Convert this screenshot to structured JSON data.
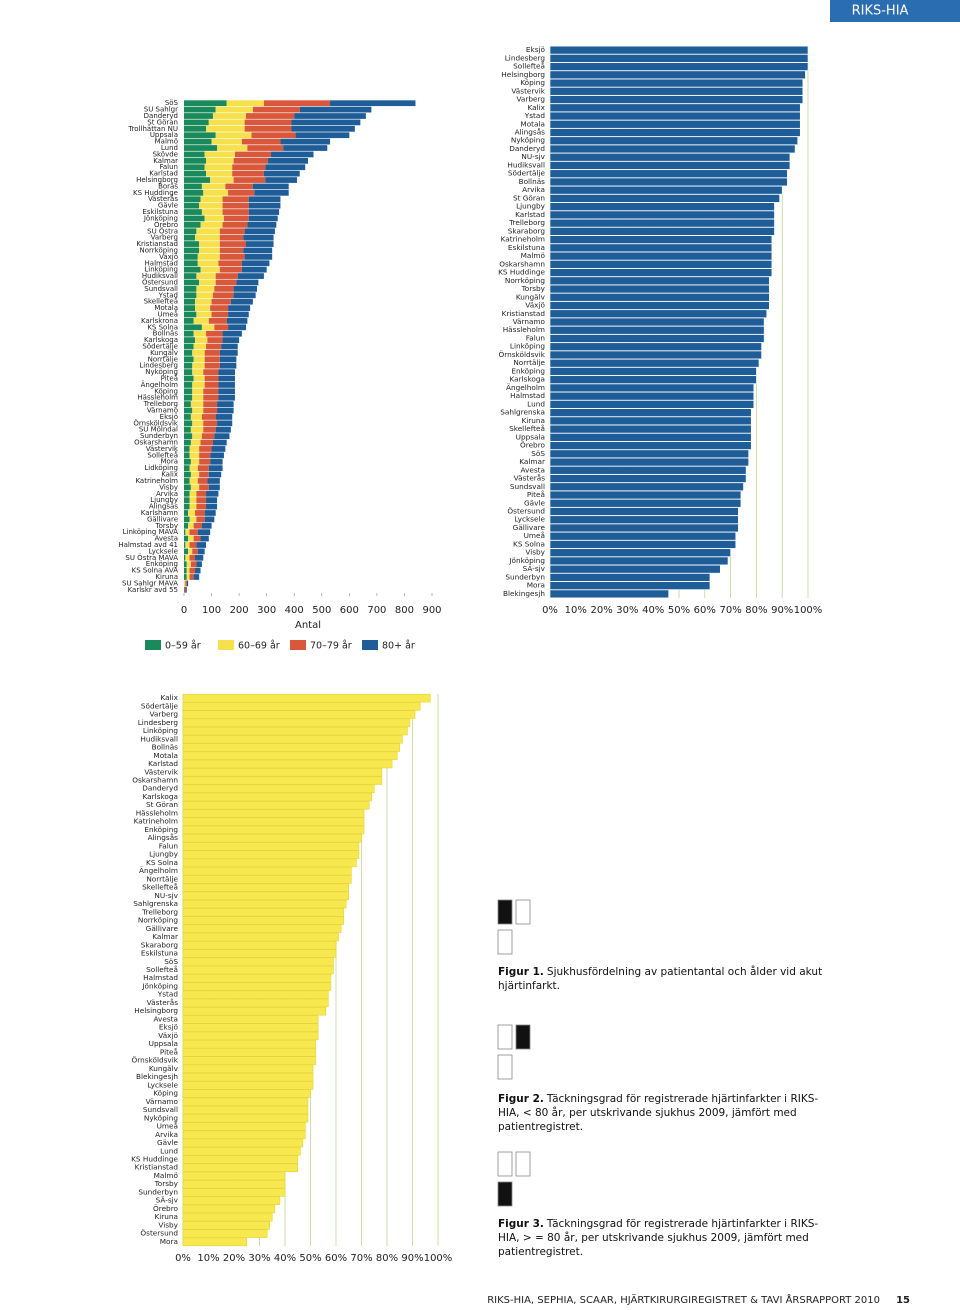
{
  "header": {
    "title": "RIKS-HIA"
  },
  "chart_data": [
    {
      "type": "stacked_bar",
      "xlabel": "Antal",
      "categories": [
        "SöS",
        "SU Sahlgr",
        "Danderyd",
        "St Göran",
        "Trollhättan NU",
        "Uppsala",
        "Malmö",
        "Lund",
        "Skövde",
        "Kalmar",
        "Falun",
        "Karlstad",
        "Helsingborg",
        "Borås",
        "KS Huddinge",
        "Västerås",
        "Gävle",
        "Eskilstuna",
        "Jönköping",
        "Örebro",
        "SU Östra",
        "Varberg",
        "Kristianstad",
        "Norrköping",
        "Växjö",
        "Halmstad",
        "Linköping",
        "Hudiksvall",
        "Östersund",
        "Sundsvall",
        "Ystad",
        "Skellefteå",
        "Motala",
        "Umeå",
        "Karlskrona",
        "KS Solna",
        "Bollnäs",
        "Karlskoga",
        "Södertälje",
        "Kungälv",
        "Norrtälje",
        "Lindesberg",
        "Nyköping",
        "Piteå",
        "Ängelholm",
        "Köping",
        "Hässleholm",
        "Trelleborg",
        "Värnamo",
        "Eksjö",
        "Örnsköldsvik",
        "SU Mölndal",
        "Sunderbyn",
        "Oskarshamn",
        "Västervik",
        "Sollefteå",
        "Mora",
        "Lidköping",
        "Kalix",
        "Katrineholm",
        "Visby",
        "Arvika",
        "Ljungby",
        "Alingsås",
        "Karlshamn",
        "Gällivare",
        "Torsby",
        "Linköping MAVA",
        "Avesta",
        "Halmstad avd 41",
        "Lycksele",
        "SU Östra MAVA",
        "Enköping",
        "KS Solna AVA",
        "Kiruna",
        "SU Sahlgr MAVA",
        "Karlskr avd 55"
      ],
      "series": [
        {
          "name": "0–59 år",
          "color": "#1a8a5a",
          "values": [
            155,
            115,
            105,
            90,
            80,
            115,
            100,
            120,
            75,
            80,
            75,
            80,
            95,
            65,
            70,
            60,
            55,
            65,
            75,
            60,
            45,
            40,
            55,
            55,
            50,
            50,
            60,
            45,
            55,
            45,
            45,
            40,
            40,
            45,
            35,
            65,
            35,
            40,
            35,
            30,
            35,
            30,
            30,
            35,
            30,
            30,
            30,
            25,
            30,
            25,
            30,
            25,
            30,
            25,
            20,
            20,
            25,
            20,
            25,
            20,
            25,
            20,
            20,
            20,
            15,
            20,
            15,
            5,
            15,
            5,
            15,
            5,
            10,
            10,
            10,
            0,
            0
          ]
        },
        {
          "name": "60–69 år",
          "color": "#f6e04b",
          "values": [
            135,
            135,
            120,
            130,
            140,
            130,
            110,
            110,
            110,
            100,
            100,
            95,
            85,
            85,
            90,
            80,
            85,
            75,
            70,
            80,
            85,
            90,
            75,
            75,
            80,
            75,
            70,
            70,
            60,
            65,
            60,
            60,
            55,
            55,
            55,
            45,
            45,
            45,
            45,
            45,
            40,
            45,
            40,
            40,
            45,
            40,
            40,
            45,
            40,
            40,
            40,
            45,
            35,
            35,
            35,
            35,
            30,
            30,
            30,
            30,
            30,
            25,
            25,
            25,
            25,
            25,
            20,
            15,
            20,
            15,
            15,
            15,
            15,
            10,
            10,
            5,
            0
          ]
        },
        {
          "name": "70–79 år",
          "color": "#d9573a",
          "values": [
            240,
            170,
            175,
            170,
            170,
            160,
            140,
            130,
            130,
            125,
            120,
            115,
            115,
            100,
            95,
            95,
            95,
            95,
            90,
            90,
            90,
            85,
            95,
            85,
            90,
            85,
            80,
            80,
            75,
            70,
            75,
            70,
            65,
            60,
            65,
            50,
            60,
            55,
            55,
            55,
            55,
            55,
            55,
            50,
            50,
            55,
            55,
            50,
            50,
            50,
            50,
            45,
            45,
            45,
            45,
            40,
            40,
            40,
            35,
            35,
            35,
            35,
            35,
            35,
            35,
            30,
            30,
            30,
            25,
            25,
            20,
            20,
            20,
            20,
            15,
            5,
            5
          ]
        },
        {
          "name": "80+ år",
          "color": "#1f5d99",
          "values": [
            310,
            260,
            260,
            250,
            230,
            195,
            180,
            160,
            155,
            145,
            145,
            130,
            115,
            130,
            125,
            115,
            115,
            110,
            105,
            105,
            110,
            110,
            100,
            105,
            100,
            100,
            90,
            95,
            80,
            85,
            80,
            80,
            80,
            75,
            75,
            65,
            70,
            60,
            60,
            65,
            60,
            60,
            60,
            60,
            60,
            60,
            60,
            60,
            60,
            60,
            55,
            55,
            55,
            50,
            50,
            50,
            45,
            50,
            45,
            45,
            40,
            45,
            40,
            40,
            40,
            35,
            35,
            45,
            30,
            35,
            25,
            30,
            20,
            20,
            20,
            5,
            5
          ]
        }
      ],
      "xlim": [
        0,
        900
      ],
      "xticks": [
        0,
        100,
        200,
        300,
        400,
        500,
        600,
        700,
        800,
        900
      ],
      "grid": false
    },
    {
      "type": "bar",
      "color": "#1f5d99",
      "categories": [
        "Eksjö",
        "Lindesberg",
        "Sollefteå",
        "Helsingborg",
        "Köping",
        "Västervik",
        "Varberg",
        "Kalix",
        "Ystad",
        "Motala",
        "Alingsås",
        "Nyköping",
        "Danderyd",
        "NU-sjv",
        "Hudiksvall",
        "Södertälje",
        "Bollnäs",
        "Arvika",
        "St Göran",
        "Ljungby",
        "Karlstad",
        "Trelleborg",
        "Skaraborg",
        "Katrineholm",
        "Eskilstuna",
        "Malmö",
        "Oskarshamn",
        "KS Huddinge",
        "Norrköping",
        "Torsby",
        "Kungälv",
        "Växjö",
        "Kristianstad",
        "Värnamo",
        "Hässleholm",
        "Falun",
        "Linköping",
        "Örnsköldsvik",
        "Norrtälje",
        "Enköping",
        "Karlskoga",
        "Ängelholm",
        "Halmstad",
        "Lund",
        "Sahlgrenska",
        "Kiruna",
        "Skellefteå",
        "Uppsala",
        "Örebro",
        "SöS",
        "Kalmar",
        "Avesta",
        "Västerås",
        "Sundsvall",
        "Piteå",
        "Gävle",
        "Östersund",
        "Lycksele",
        "Gällivare",
        "Umeå",
        "KS Solna",
        "Visby",
        "Jönköping",
        "SÄ-sjv",
        "Sunderbyn",
        "Mora",
        "Blekingesjh"
      ],
      "values": [
        100,
        100,
        100,
        99,
        98,
        98,
        98,
        97,
        97,
        97,
        97,
        96,
        95,
        93,
        93,
        92,
        92,
        90,
        89,
        87,
        87,
        87,
        87,
        86,
        86,
        86,
        86,
        86,
        85,
        85,
        85,
        85,
        84,
        83,
        83,
        83,
        82,
        82,
        81,
        80,
        80,
        79,
        79,
        79,
        78,
        78,
        78,
        78,
        78,
        77,
        77,
        76,
        76,
        75,
        74,
        74,
        73,
        73,
        73,
        72,
        72,
        70,
        69,
        66,
        62,
        62,
        46
      ],
      "xlim": [
        0,
        100
      ],
      "xticks": [
        {
          "value": 0,
          "label": "0%"
        },
        {
          "value": 10,
          "label": "10%"
        },
        {
          "value": 20,
          "label": "20%"
        },
        {
          "value": 30,
          "label": "30%"
        },
        {
          "value": 40,
          "label": "40%"
        },
        {
          "value": 50,
          "label": "50%"
        },
        {
          "value": 60,
          "label": "60%"
        },
        {
          "value": 70,
          "label": "70%"
        },
        {
          "value": 80,
          "label": "80%"
        },
        {
          "value": 90,
          "label": "90%"
        },
        {
          "value": 100,
          "label": "100%"
        }
      ],
      "grid": true
    },
    {
      "type": "bar",
      "color": "#f7e84f",
      "categories": [
        "Kalix",
        "Södertälje",
        "Varberg",
        "Lindesberg",
        "Linköping",
        "Hudiksvall",
        "Bollnäs",
        "Motala",
        "Karlstad",
        "Västervik",
        "Oskarshamn",
        "Danderyd",
        "Karlskoga",
        "St Göran",
        "Hässleholm",
        "Katrineholm",
        "Enköping",
        "Alingsås",
        "Falun",
        "Ljungby",
        "KS Solna",
        "Ängelholm",
        "Norrtälje",
        "Skellefteå",
        "NU-sjv",
        "Sahlgrenska",
        "Trelleborg",
        "Norrköping",
        "Gällivare",
        "Kalmar",
        "Skaraborg",
        "Eskilstuna",
        "SöS",
        "Sollefteå",
        "Halmstad",
        "Jönköping",
        "Ystad",
        "Västerås",
        "Helsingborg",
        "Avesta",
        "Eksjö",
        "Växjö",
        "Uppsala",
        "Piteå",
        "Örnsköldsvik",
        "Kungälv",
        "Blekingesjh",
        "Lycksele",
        "Köping",
        "Värnamo",
        "Sundsvall",
        "Nyköping",
        "Umeå",
        "Arvika",
        "Gävle",
        "Lund",
        "KS Huddinge",
        "Kristianstad",
        "Malmö",
        "Torsby",
        "Sunderbyn",
        "SÄ-sjv",
        "Örebro",
        "Kiruna",
        "Visby",
        "Östersund",
        "Mora"
      ],
      "values": [
        97,
        93,
        91,
        89,
        88,
        86,
        85,
        84,
        82,
        78,
        78,
        75,
        74,
        73,
        71,
        71,
        71,
        70,
        69,
        69,
        68,
        66,
        66,
        65,
        65,
        64,
        63,
        63,
        62,
        61,
        60,
        60,
        59,
        59,
        58,
        58,
        57,
        57,
        56,
        53,
        53,
        53,
        52,
        52,
        52,
        51,
        51,
        51,
        50,
        49,
        49,
        49,
        48,
        48,
        47,
        46,
        45,
        45,
        40,
        40,
        40,
        38,
        36,
        35,
        34,
        33,
        25
      ],
      "xlim": [
        0,
        100
      ],
      "xticks": [
        {
          "value": 0,
          "label": "0%"
        },
        {
          "value": 10,
          "label": "10%"
        },
        {
          "value": 20,
          "label": "20%"
        },
        {
          "value": 30,
          "label": "30%"
        },
        {
          "value": 40,
          "label": "40%"
        },
        {
          "value": 50,
          "label": "50%"
        },
        {
          "value": 60,
          "label": "60%"
        },
        {
          "value": 70,
          "label": "70%"
        },
        {
          "value": 80,
          "label": "80%"
        },
        {
          "value": 90,
          "label": "90%"
        },
        {
          "value": 100,
          "label": "100%"
        }
      ],
      "grid": true
    }
  ],
  "captions": [
    {
      "label": "Figur 1.",
      "text": "Sjukhusfördelning av patientantal och ålder vid akut hjärtinfarkt."
    },
    {
      "label": "Figur 2.",
      "text": "Täckningsgrad för registrerade hjärtinfarkter i RIKS-HIA, < 80 år, per utskrivande sjukhus 2009, jämfört med patientregistret."
    },
    {
      "label": "Figur 3.",
      "text": "Täckningsgrad för registrerade hjärtinfarkter i RIKS-HIA, > = 80 år, per utskrivande sjukhus 2009, jämfört med patientregistret."
    }
  ],
  "footer": {
    "text": "RIKS-HIA, SEPHIA, SCAAR, HJÄRTKIRURGIREGISTRET & TAVI ÅRSRAPPORT 2010",
    "page": "15"
  }
}
